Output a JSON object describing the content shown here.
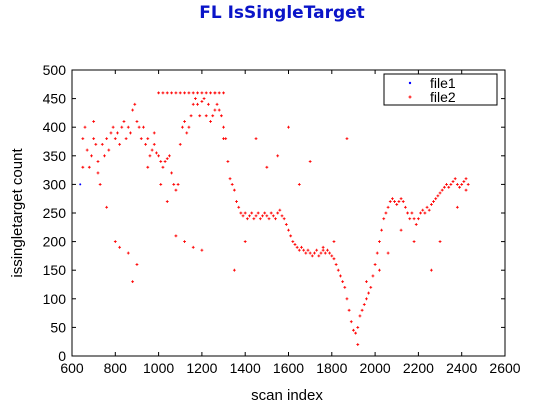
{
  "chart_data": {
    "type": "scatter",
    "title": "FL IsSingleTarget",
    "xlabel": "scan index",
    "ylabel": "issingletarget count",
    "xlim": [
      600,
      2600
    ],
    "ylim": [
      0,
      500
    ],
    "xticks": [
      "600",
      "800",
      "1000",
      "1200",
      "1400",
      "1600",
      "1800",
      "2000",
      "2200",
      "2400",
      "2600"
    ],
    "yticks": [
      "0",
      "50",
      "100",
      "150",
      "200",
      "250",
      "300",
      "350",
      "400",
      "450",
      "500"
    ],
    "grid": false,
    "legend_position": "top-right",
    "series": [
      {
        "name": "file1",
        "color": "#0000ff",
        "marker": "dot",
        "points": [
          [
            638,
            300
          ]
        ]
      },
      {
        "name": "file2",
        "color": "#ff0000",
        "marker": "plus",
        "points": [
          [
            650,
            380
          ],
          [
            660,
            400
          ],
          [
            670,
            360
          ],
          [
            680,
            330
          ],
          [
            690,
            350
          ],
          [
            700,
            380
          ],
          [
            710,
            370
          ],
          [
            720,
            340
          ],
          [
            730,
            300
          ],
          [
            740,
            370
          ],
          [
            750,
            350
          ],
          [
            760,
            380
          ],
          [
            770,
            360
          ],
          [
            780,
            390
          ],
          [
            790,
            400
          ],
          [
            800,
            380
          ],
          [
            810,
            390
          ],
          [
            820,
            370
          ],
          [
            830,
            400
          ],
          [
            840,
            410
          ],
          [
            850,
            380
          ],
          [
            860,
            400
          ],
          [
            870,
            390
          ],
          [
            880,
            430
          ],
          [
            890,
            440
          ],
          [
            900,
            410
          ],
          [
            910,
            400
          ],
          [
            920,
            380
          ],
          [
            930,
            400
          ],
          [
            940,
            370
          ],
          [
            950,
            380
          ],
          [
            960,
            350
          ],
          [
            970,
            360
          ],
          [
            980,
            370
          ],
          [
            990,
            355
          ],
          [
            1000,
            350
          ],
          [
            1010,
            340
          ],
          [
            1020,
            330
          ],
          [
            1030,
            340
          ],
          [
            1040,
            345
          ],
          [
            1050,
            350
          ],
          [
            1060,
            320
          ],
          [
            1070,
            300
          ],
          [
            1080,
            290
          ],
          [
            1090,
            300
          ],
          [
            1100,
            370
          ],
          [
            1110,
            400
          ],
          [
            1120,
            410
          ],
          [
            1130,
            390
          ],
          [
            1140,
            400
          ],
          [
            1150,
            420
          ],
          [
            1160,
            440
          ],
          [
            1170,
            450
          ],
          [
            1180,
            440
          ],
          [
            1190,
            420
          ],
          [
            1200,
            445
          ],
          [
            1210,
            450
          ],
          [
            1220,
            420
          ],
          [
            1230,
            440
          ],
          [
            1240,
            410
          ],
          [
            1250,
            420
          ],
          [
            1260,
            460
          ],
          [
            1270,
            440
          ],
          [
            1280,
            430
          ],
          [
            1290,
            420
          ],
          [
            1300,
            400
          ],
          [
            1310,
            380
          ],
          [
            1320,
            340
          ],
          [
            1330,
            310
          ],
          [
            1340,
            300
          ],
          [
            1350,
            290
          ],
          [
            1360,
            270
          ],
          [
            1370,
            260
          ],
          [
            1380,
            250
          ],
          [
            1390,
            245
          ],
          [
            1400,
            250
          ],
          [
            1410,
            240
          ],
          [
            1420,
            245
          ],
          [
            1430,
            250
          ],
          [
            1440,
            240
          ],
          [
            1450,
            245
          ],
          [
            1460,
            250
          ],
          [
            1470,
            240
          ],
          [
            1480,
            245
          ],
          [
            1490,
            250
          ],
          [
            1500,
            245
          ],
          [
            1510,
            240
          ],
          [
            1520,
            250
          ],
          [
            1530,
            245
          ],
          [
            1540,
            240
          ],
          [
            1550,
            250
          ],
          [
            1560,
            255
          ],
          [
            1570,
            245
          ],
          [
            1580,
            240
          ],
          [
            1590,
            230
          ],
          [
            1600,
            220
          ],
          [
            1610,
            210
          ],
          [
            1620,
            200
          ],
          [
            1630,
            195
          ],
          [
            1640,
            190
          ],
          [
            1650,
            185
          ],
          [
            1660,
            190
          ],
          [
            1670,
            185
          ],
          [
            1680,
            180
          ],
          [
            1690,
            185
          ],
          [
            1700,
            180
          ],
          [
            1710,
            175
          ],
          [
            1720,
            180
          ],
          [
            1730,
            185
          ],
          [
            1740,
            175
          ],
          [
            1750,
            180
          ],
          [
            1760,
            185
          ],
          [
            1770,
            180
          ],
          [
            1780,
            185
          ],
          [
            1790,
            180
          ],
          [
            1800,
            175
          ],
          [
            1810,
            170
          ],
          [
            1820,
            160
          ],
          [
            1830,
            150
          ],
          [
            1840,
            140
          ],
          [
            1850,
            130
          ],
          [
            1860,
            120
          ],
          [
            1870,
            100
          ],
          [
            1880,
            80
          ],
          [
            1890,
            60
          ],
          [
            1900,
            45
          ],
          [
            1910,
            40
          ],
          [
            1920,
            50
          ],
          [
            1930,
            70
          ],
          [
            1940,
            80
          ],
          [
            1950,
            90
          ],
          [
            1960,
            100
          ],
          [
            1970,
            110
          ],
          [
            1980,
            120
          ],
          [
            1990,
            140
          ],
          [
            2000,
            160
          ],
          [
            2010,
            180
          ],
          [
            2020,
            200
          ],
          [
            2030,
            220
          ],
          [
            2040,
            240
          ],
          [
            2050,
            250
          ],
          [
            2060,
            260
          ],
          [
            2070,
            270
          ],
          [
            2080,
            275
          ],
          [
            2090,
            270
          ],
          [
            2100,
            265
          ],
          [
            2110,
            270
          ],
          [
            2120,
            275
          ],
          [
            2130,
            270
          ],
          [
            2140,
            260
          ],
          [
            2150,
            250
          ],
          [
            2160,
            240
          ],
          [
            2170,
            250
          ],
          [
            2180,
            240
          ],
          [
            2190,
            230
          ],
          [
            2200,
            240
          ],
          [
            2210,
            250
          ],
          [
            2220,
            255
          ],
          [
            2230,
            250
          ],
          [
            2240,
            260
          ],
          [
            2250,
            255
          ],
          [
            2260,
            265
          ],
          [
            2270,
            270
          ],
          [
            2280,
            275
          ],
          [
            2290,
            280
          ],
          [
            2300,
            285
          ],
          [
            2310,
            290
          ],
          [
            2320,
            295
          ],
          [
            2330,
            300
          ],
          [
            2340,
            295
          ],
          [
            2350,
            300
          ],
          [
            2360,
            305
          ],
          [
            2370,
            310
          ],
          [
            2380,
            300
          ],
          [
            2390,
            295
          ],
          [
            2400,
            300
          ],
          [
            2410,
            305
          ],
          [
            2420,
            310
          ],
          [
            2430,
            300
          ],
          [
            1000,
            460
          ],
          [
            1020,
            460
          ],
          [
            1040,
            460
          ],
          [
            1060,
            460
          ],
          [
            1080,
            460
          ],
          [
            1100,
            460
          ],
          [
            1120,
            460
          ],
          [
            1140,
            460
          ],
          [
            1160,
            460
          ],
          [
            1180,
            460
          ],
          [
            1200,
            460
          ],
          [
            1220,
            460
          ],
          [
            1240,
            460
          ],
          [
            1260,
            460
          ],
          [
            1280,
            460
          ],
          [
            1300,
            460
          ],
          [
            650,
            330
          ],
          [
            700,
            410
          ],
          [
            720,
            320
          ],
          [
            760,
            260
          ],
          [
            800,
            200
          ],
          [
            820,
            190
          ],
          [
            860,
            180
          ],
          [
            880,
            130
          ],
          [
            900,
            160
          ],
          [
            950,
            330
          ],
          [
            980,
            390
          ],
          [
            1010,
            300
          ],
          [
            1040,
            270
          ],
          [
            1080,
            210
          ],
          [
            1120,
            200
          ],
          [
            1160,
            190
          ],
          [
            1200,
            185
          ],
          [
            1260,
            430
          ],
          [
            1300,
            380
          ],
          [
            1350,
            150
          ],
          [
            1400,
            200
          ],
          [
            1450,
            380
          ],
          [
            1500,
            330
          ],
          [
            1550,
            350
          ],
          [
            1600,
            400
          ],
          [
            1650,
            300
          ],
          [
            1700,
            340
          ],
          [
            1760,
            190
          ],
          [
            1810,
            200
          ],
          [
            1870,
            380
          ],
          [
            1920,
            20
          ],
          [
            1960,
            130
          ],
          [
            2020,
            150
          ],
          [
            2060,
            180
          ],
          [
            2120,
            220
          ],
          [
            2180,
            200
          ],
          [
            2260,
            150
          ],
          [
            2300,
            200
          ],
          [
            2380,
            260
          ],
          [
            2420,
            290
          ]
        ]
      }
    ]
  }
}
